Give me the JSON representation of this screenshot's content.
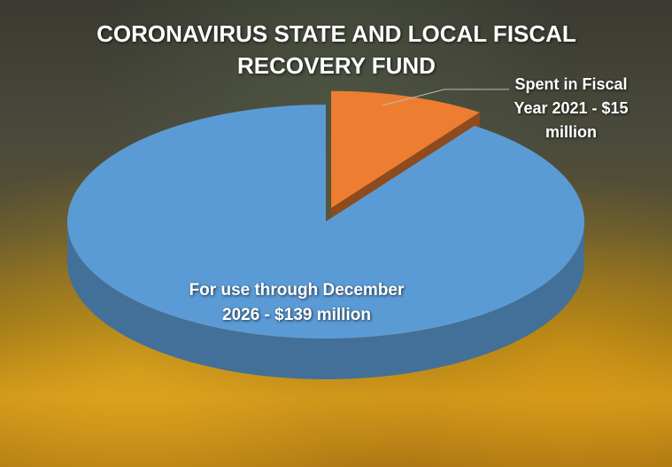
{
  "chart_data": {
    "type": "pie",
    "title": "CORONAVIRUS STATE AND LOCAL FISCAL RECOVERY FUND",
    "categories": [
      "Spent in Fiscal Year 2021 - $15 million",
      "For use through December 2026 - $139 million"
    ],
    "values": [
      15,
      139
    ],
    "colors": [
      "#ed7d31",
      "#5b9bd5"
    ]
  }
}
